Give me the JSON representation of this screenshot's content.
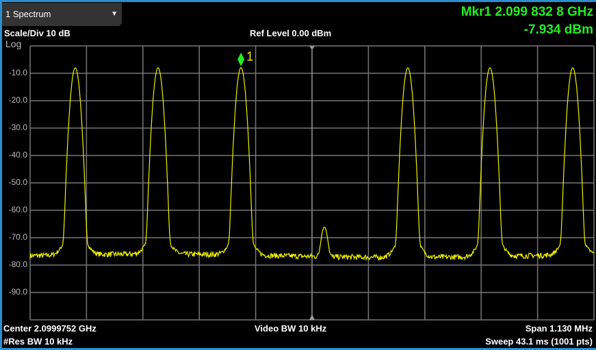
{
  "window": {
    "dropdown_label": "1 Spectrum",
    "dropdown_icon": "triangle-down-icon"
  },
  "header": {
    "scale": "Scale/Div 10 dB",
    "scale_type": "Log",
    "ref_level": "Ref Level 0.00 dBm",
    "marker_freq": "Mkr1  2.099 832 8 GHz",
    "marker_level": "-7.934 dBm"
  },
  "footer": {
    "center": "Center 2.0999752 GHz",
    "res_bw": "#Res BW 10 kHz",
    "video_bw": "Video BW 10 kHz",
    "span": "Span 1.130 MHz",
    "sweep": "Sweep 43.1 ms (1001 pts)"
  },
  "colors": {
    "trace": "#f2f200",
    "marker": "#22ee22",
    "grid": "#777777",
    "frame": "#2a8fd0"
  },
  "chart_data": {
    "type": "line",
    "title": "",
    "xlabel": "",
    "ylabel": "",
    "x_unit": "GHz",
    "xlim": [
      2.0994102,
      2.1005402
    ],
    "ylim": [
      -100,
      0
    ],
    "y_ticks": [
      "-10.0",
      "-20.0",
      "-30.0",
      "-40.0",
      "-50.0",
      "-60.0",
      "-70.0",
      "-80.0",
      "-90.0"
    ],
    "grid": true,
    "points": 1001,
    "noise_floor_dbm": -76,
    "series": [
      {
        "peaks": [
          {
            "freq": 2.0995007,
            "level": -8.0
          },
          {
            "freq": 2.0996666,
            "level": -8.0
          },
          {
            "freq": 2.0998328,
            "level": -7.934
          },
          {
            "freq": 2.1,
            "level": -66.5
          },
          {
            "freq": 2.1001672,
            "level": -8.0
          },
          {
            "freq": 2.1003318,
            "level": -8.0
          },
          {
            "freq": 2.1004977,
            "level": -8.0
          }
        ]
      }
    ],
    "marker": {
      "label": "1",
      "freq": 2.0998328,
      "level": -7.934
    }
  }
}
